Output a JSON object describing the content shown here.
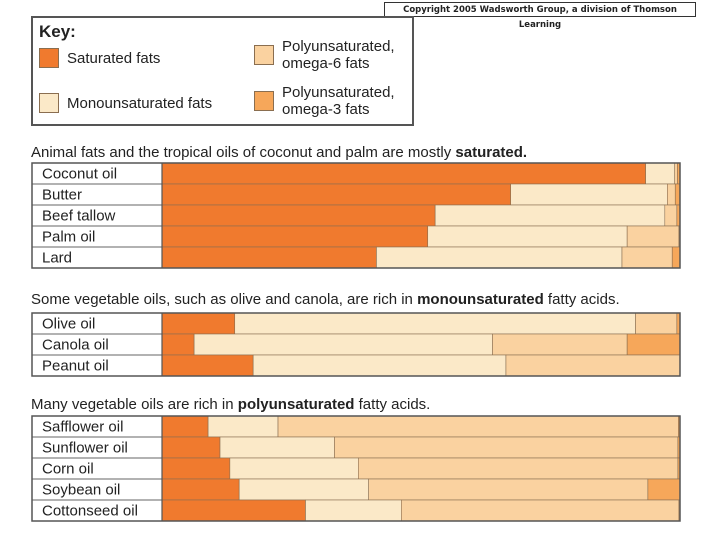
{
  "copyright": "Copyright 2005 Wadsworth Group, a division of Thomson Learning",
  "key": {
    "title": "Key:",
    "items": [
      {
        "label": "Saturated fats",
        "color": "#F07A2E"
      },
      {
        "label": "Polyunsaturated, omega-6 fats",
        "color": "#FAD2A0"
      },
      {
        "label": "Monounsaturated fats",
        "color": "#FBE9C8"
      },
      {
        "label": "Polyunsaturated, omega-3 fats",
        "color": "#F6A75A"
      }
    ]
  },
  "sections": [
    {
      "text_before": "Animal fats and the tropical oils of coconut and palm are mostly ",
      "bold": "saturated.",
      "text_after": ""
    },
    {
      "text_before": "Some vegetable oils, such as olive and canola, are rich in ",
      "bold": "monounsaturated",
      "text_after": " fatty acids."
    },
    {
      "text_before": "Many vegetable oils are rich in ",
      "bold": "polyunsaturated",
      "text_after": " fatty acids."
    }
  ],
  "chart_data": {
    "type": "bar",
    "orientation": "horizontal",
    "stacked": true,
    "percent_scale": true,
    "segment_order": [
      "Saturated",
      "Monounsaturated",
      "Polyunsaturated, omega-6",
      "Polyunsaturated, omega-3"
    ],
    "colors": [
      "#F07A2E",
      "#FBE9C8",
      "#FAD2A0",
      "#F6A75A"
    ],
    "groups": [
      {
        "rows": [
          {
            "label": "Coconut oil",
            "values": [
              91.5,
              5.5,
              0.5,
              0.5
            ]
          },
          {
            "label": "Butter",
            "values": [
              66.1,
              29.7,
              1.5,
              0.9
            ]
          },
          {
            "label": "Beef tallow",
            "values": [
              52.1,
              43.8,
              2.3,
              0.6
            ]
          },
          {
            "label": "Palm oil",
            "values": [
              51.3,
              38.5,
              10.0,
              0.2
            ]
          },
          {
            "label": "Lard",
            "values": [
              41.4,
              47.4,
              9.7,
              1.5
            ]
          }
        ]
      },
      {
        "rows": [
          {
            "label": "Olive oil",
            "values": [
              13.9,
              76.6,
              7.9,
              0.6
            ]
          },
          {
            "label": "Canola oil",
            "values": [
              6.2,
              57.6,
              26.0,
              10.2
            ]
          },
          {
            "label": "Peanut oil",
            "values": [
              17.6,
              48.8,
              33.6,
              0.0
            ]
          }
        ]
      },
      {
        "rows": [
          {
            "label": "Safflower oil",
            "values": [
              8.9,
              13.5,
              77.3,
              0.3
            ]
          },
          {
            "label": "Sunflower oil",
            "values": [
              11.2,
              22.1,
              66.3,
              0.4
            ]
          },
          {
            "label": "Corn oil",
            "values": [
              13.1,
              24.8,
              61.7,
              0.4
            ]
          },
          {
            "label": "Soybean oil",
            "values": [
              14.9,
              25.0,
              53.9,
              6.2
            ]
          },
          {
            "label": "Cottonseed oil",
            "values": [
              27.7,
              18.5,
              53.6,
              0.2
            ]
          }
        ]
      }
    ]
  }
}
